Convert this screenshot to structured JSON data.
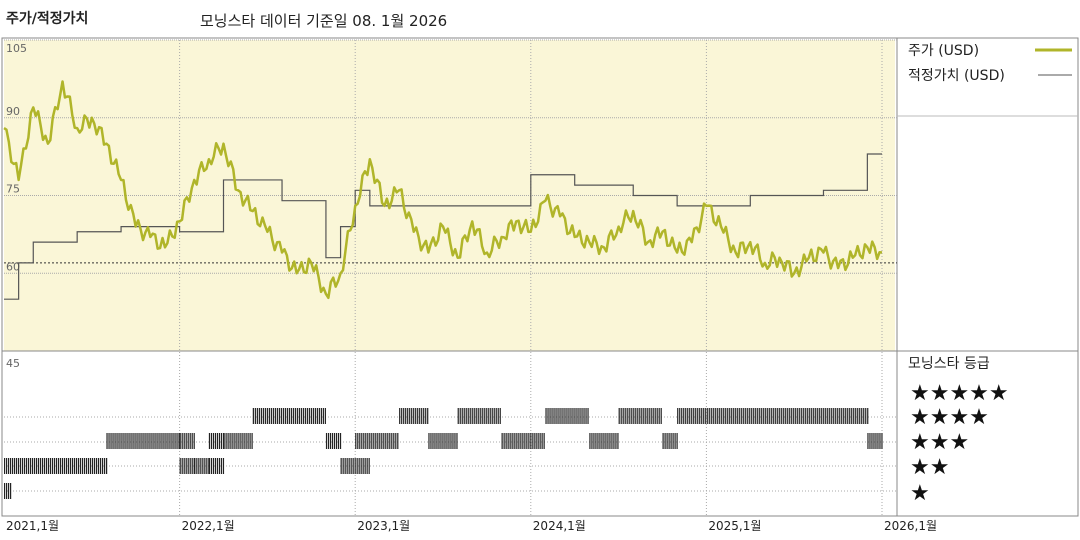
{
  "header": {
    "title": "주가/적정가치",
    "subtitle": "모닝스타 데이터 기준일 08. 1월 2026"
  },
  "legend": {
    "price_label": "주가 (USD)",
    "fair_label": "적정가치 (USD)",
    "rating_label": "모닝스타 등급"
  },
  "colors": {
    "price": "#b0b52a",
    "fair": "#555555",
    "plot_bg": "#faf6d7",
    "grid": "#999999"
  },
  "stars": [
    "★★★★★",
    "★★★★",
    "★★★",
    "★★",
    "★"
  ],
  "chart_data": {
    "type": "line",
    "title": "주가/적정가치",
    "subtitle": "모닝스타 데이터 기준일 08. 1월 2026",
    "x_start": "2021-01",
    "x_end": "2026-01",
    "xticks": [
      "2021,1월",
      "2022,1월",
      "2023,1월",
      "2024,1월",
      "2025,1월",
      "2026,1월"
    ],
    "yticks": [
      105,
      90,
      75,
      60,
      45
    ],
    "ylim": [
      45,
      105
    ],
    "reference_line": 62,
    "series": [
      {
        "name": "주가 (USD)",
        "color": "#b0b52a",
        "x": [
          "2021-01",
          "2021-02",
          "2021-03",
          "2021-04",
          "2021-05",
          "2021-06",
          "2021-07",
          "2021-08",
          "2021-09",
          "2021-10",
          "2021-11",
          "2021-12",
          "2022-01",
          "2022-02",
          "2022-03",
          "2022-04",
          "2022-05",
          "2022-06",
          "2022-07",
          "2022-08",
          "2022-09",
          "2022-10",
          "2022-11",
          "2022-12",
          "2023-01",
          "2023-02",
          "2023-03",
          "2023-04",
          "2023-05",
          "2023-06",
          "2023-07",
          "2023-08",
          "2023-09",
          "2023-10",
          "2023-11",
          "2023-12",
          "2024-01",
          "2024-02",
          "2024-03",
          "2024-04",
          "2024-05",
          "2024-06",
          "2024-07",
          "2024-08",
          "2024-09",
          "2024-10",
          "2024-11",
          "2024-12",
          "2025-01",
          "2025-02",
          "2025-03",
          "2025-04",
          "2025-05",
          "2025-06",
          "2025-07",
          "2025-08",
          "2025-09",
          "2025-10",
          "2025-11",
          "2025-12",
          "2026-01"
        ],
        "values": [
          88,
          78,
          92,
          85,
          97,
          88,
          90,
          85,
          78,
          69,
          67,
          65,
          70,
          78,
          82,
          85,
          76,
          72,
          68,
          64,
          60,
          62,
          56,
          60,
          73,
          82,
          73,
          76,
          68,
          64,
          69,
          63,
          70,
          64,
          67,
          70,
          68,
          74,
          71,
          67,
          66,
          65,
          69,
          72,
          66,
          68,
          64,
          66,
          73,
          69,
          64,
          66,
          62,
          63,
          60,
          63,
          64,
          61,
          63,
          65,
          64
        ]
      },
      {
        "name": "적정가치 (USD)",
        "color": "#555555",
        "x": [
          "2021-01",
          "2021-02",
          "2021-03",
          "2021-06",
          "2021-09",
          "2022-01",
          "2022-04",
          "2022-08",
          "2022-11",
          "2022-12",
          "2023-01",
          "2023-02",
          "2023-05",
          "2023-09",
          "2024-01",
          "2024-04",
          "2024-08",
          "2024-11",
          "2025-01",
          "2025-04",
          "2025-09",
          "2025-12",
          "2026-01"
        ],
        "values": [
          55,
          62,
          66,
          68,
          69,
          68,
          78,
          74,
          63,
          69,
          76,
          73,
          73,
          73,
          79,
          77,
          75,
          73,
          73,
          75,
          76,
          83,
          83
        ]
      }
    ]
  },
  "ratings": {
    "levels": [
      5,
      4,
      3,
      2,
      1
    ],
    "segments": [
      {
        "stars": 1,
        "from": "2021-01",
        "to": "2021-01"
      },
      {
        "stars": 2,
        "from": "2021-01",
        "to": "2021-08"
      },
      {
        "stars": 3,
        "from": "2021-08",
        "to": "2022-01"
      },
      {
        "stars": 3,
        "from": "2022-01",
        "to": "2022-02"
      },
      {
        "stars": 2,
        "from": "2022-01",
        "to": "2022-02"
      },
      {
        "stars": 2,
        "from": "2022-02",
        "to": "2022-03"
      },
      {
        "stars": 3,
        "from": "2022-03",
        "to": "2022-04"
      },
      {
        "stars": 2,
        "from": "2022-03",
        "to": "2022-04"
      },
      {
        "stars": 3,
        "from": "2022-04",
        "to": "2022-06"
      },
      {
        "stars": 4,
        "from": "2022-06",
        "to": "2022-11"
      },
      {
        "stars": 3,
        "from": "2022-11",
        "to": "2022-12"
      },
      {
        "stars": 2,
        "from": "2022-12",
        "to": "2023-02"
      },
      {
        "stars": 3,
        "from": "2023-01",
        "to": "2023-04"
      },
      {
        "stars": 4,
        "from": "2023-04",
        "to": "2023-06"
      },
      {
        "stars": 3,
        "from": "2023-06",
        "to": "2023-08"
      },
      {
        "stars": 4,
        "from": "2023-08",
        "to": "2023-11"
      },
      {
        "stars": 3,
        "from": "2023-11",
        "to": "2024-02"
      },
      {
        "stars": 4,
        "from": "2024-02",
        "to": "2024-05"
      },
      {
        "stars": 3,
        "from": "2024-05",
        "to": "2024-07"
      },
      {
        "stars": 4,
        "from": "2024-07",
        "to": "2024-10"
      },
      {
        "stars": 3,
        "from": "2024-10",
        "to": "2024-11"
      },
      {
        "stars": 4,
        "from": "2024-11",
        "to": "2025-12"
      },
      {
        "stars": 3,
        "from": "2025-12",
        "to": "2026-01"
      }
    ]
  }
}
